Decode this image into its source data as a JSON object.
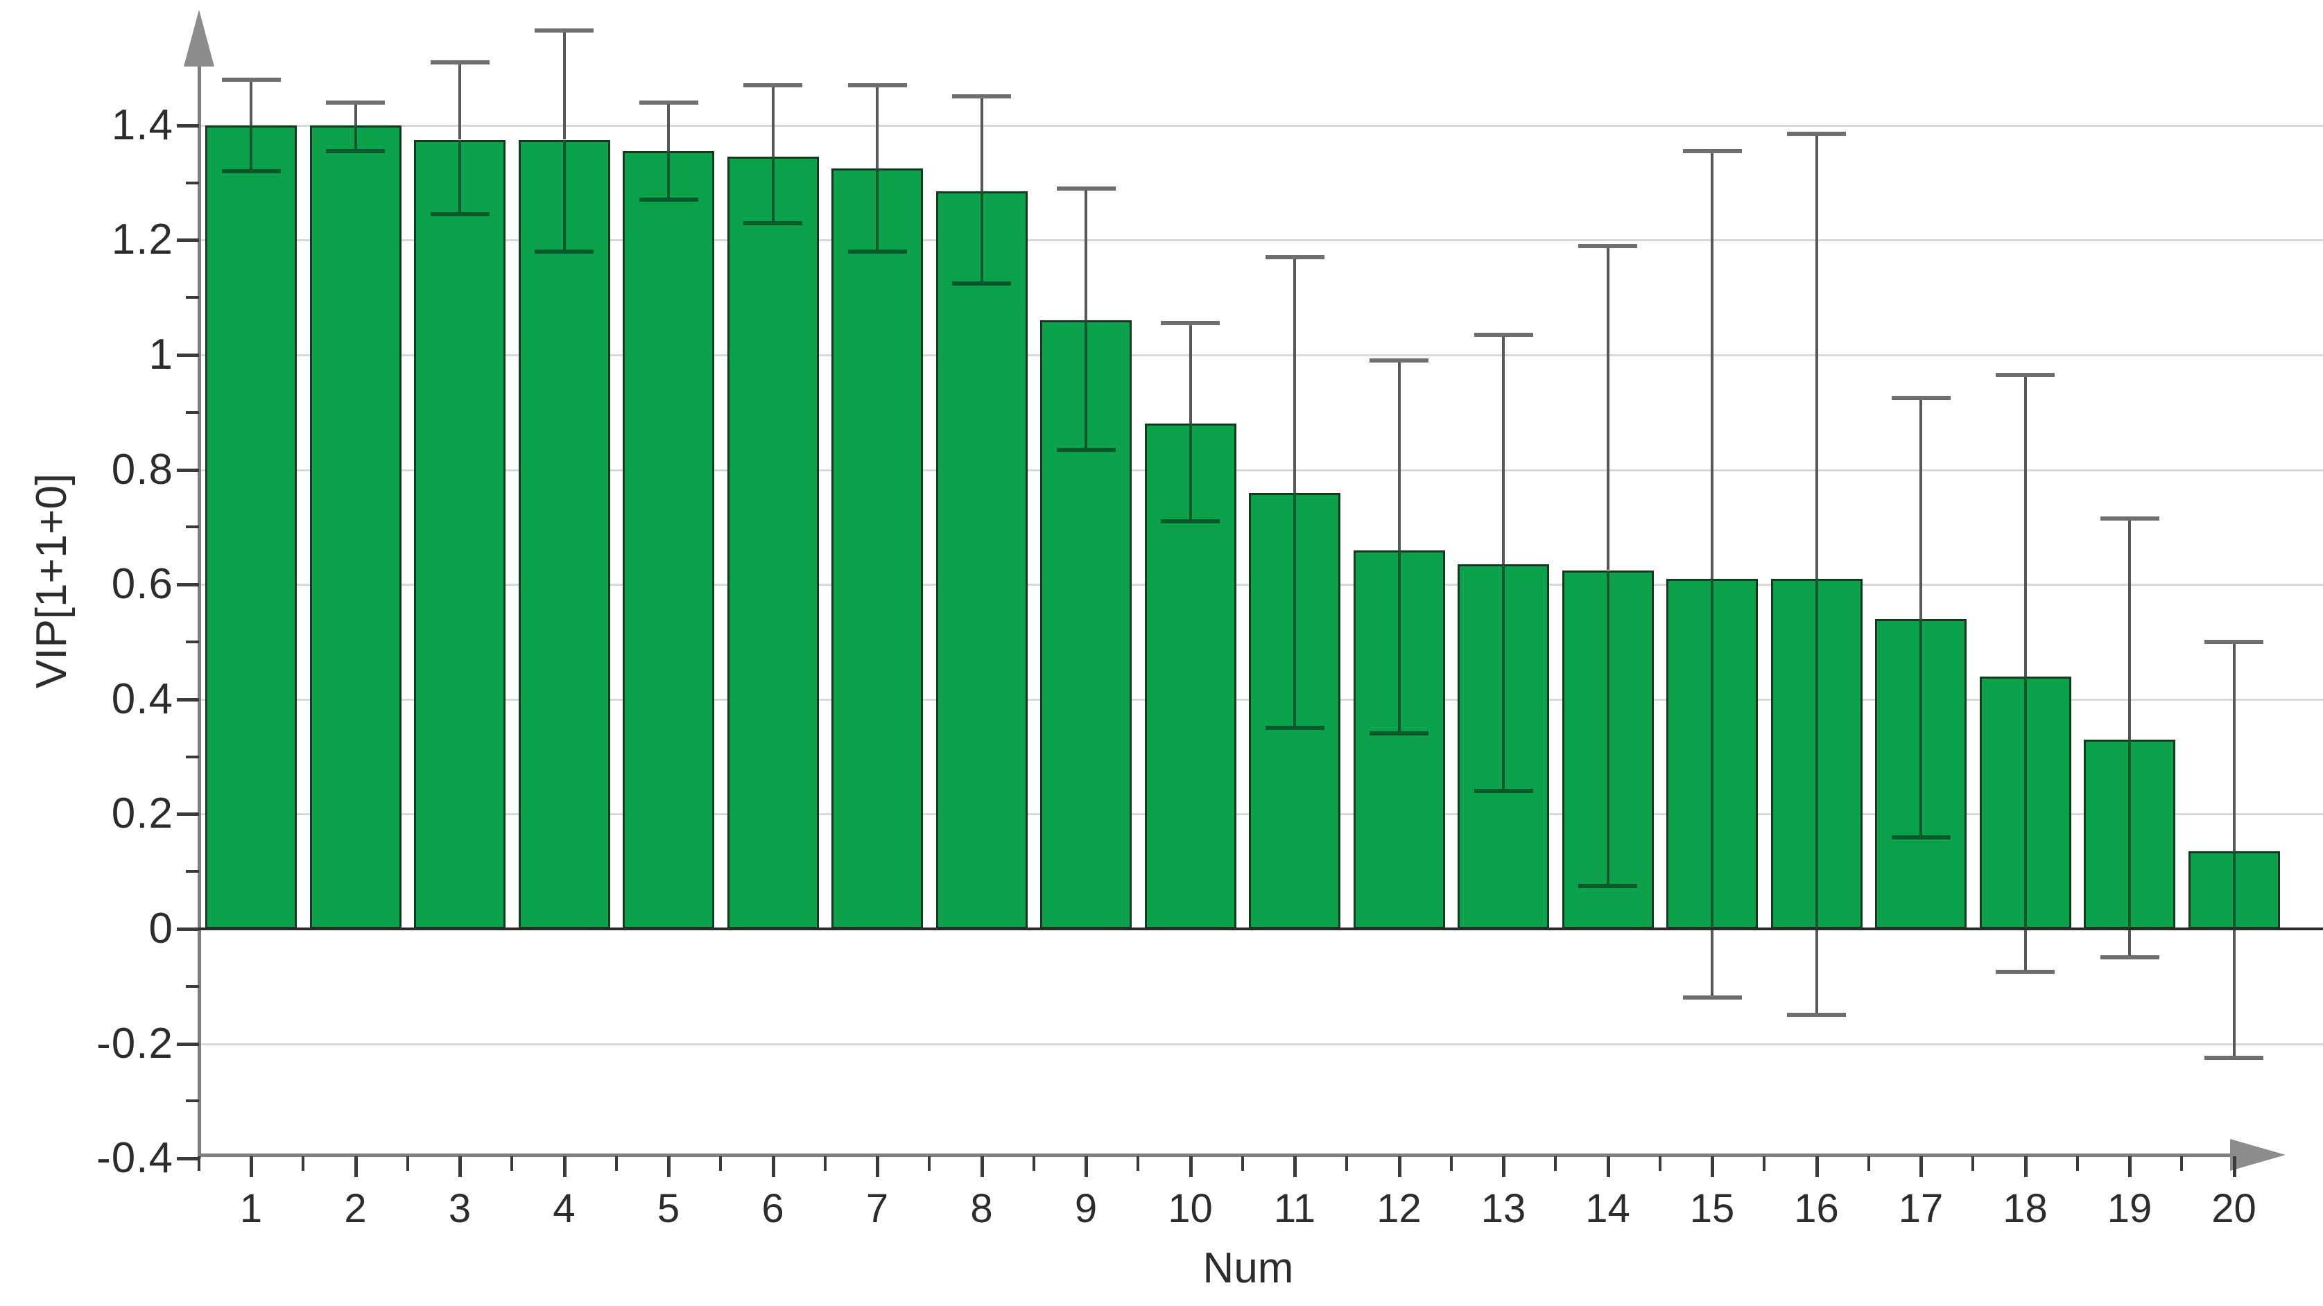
{
  "chart_data": {
    "type": "bar",
    "title": "",
    "xlabel": "Num",
    "ylabel": "VIP[1+1+0]",
    "categories": [
      "1",
      "2",
      "3",
      "4",
      "5",
      "6",
      "7",
      "8",
      "9",
      "10",
      "11",
      "12",
      "13",
      "14",
      "15",
      "16",
      "17",
      "18",
      "19",
      "20"
    ],
    "values": [
      1.4,
      1.4,
      1.375,
      1.375,
      1.355,
      1.345,
      1.325,
      1.285,
      1.06,
      0.88,
      0.76,
      0.66,
      0.635,
      0.625,
      0.61,
      0.61,
      0.54,
      0.44,
      0.33,
      0.135
    ],
    "error_high": [
      1.48,
      1.44,
      1.51,
      1.565,
      1.44,
      1.47,
      1.47,
      1.45,
      1.29,
      1.055,
      1.17,
      0.99,
      1.035,
      1.19,
      1.355,
      1.385,
      0.925,
      0.965,
      0.715,
      0.5
    ],
    "error_low": [
      1.32,
      1.355,
      1.245,
      1.18,
      1.27,
      1.23,
      1.18,
      1.125,
      0.835,
      0.71,
      0.35,
      0.34,
      0.24,
      0.075,
      -0.12,
      -0.15,
      0.16,
      -0.075,
      -0.05,
      -0.225
    ],
    "ylim": [
      -0.4,
      1.55
    ],
    "yticks": [
      {
        "value": 1.4,
        "label": "1.4"
      },
      {
        "value": 1.2,
        "label": "1.2"
      },
      {
        "value": 1.0,
        "label": "1"
      },
      {
        "value": 0.8,
        "label": "0.8"
      },
      {
        "value": 0.6,
        "label": "0.6"
      },
      {
        "value": 0.4,
        "label": "0.4"
      },
      {
        "value": 0.2,
        "label": "0.2"
      },
      {
        "value": 0.0,
        "label": "0"
      },
      {
        "value": -0.2,
        "label": "-0.2"
      },
      {
        "value": -0.4,
        "label": "-0.4"
      }
    ],
    "yticks_minor": [
      1.3,
      1.1,
      0.9,
      0.7,
      0.5,
      0.3,
      0.1,
      -0.1,
      -0.3
    ],
    "gridline_values": [
      1.4,
      1.2,
      1.0,
      0.8,
      0.6,
      0.4,
      0.2,
      -0.2
    ],
    "grid": "horizontal",
    "legend": "none",
    "colors": {
      "bar_fill": "#0ca24b",
      "bar_border": "#123a1f",
      "error_line": "#58585a",
      "error_cap": "#6f6f71",
      "error_inside_bar": "#07582a",
      "axis": "#7f7f7f",
      "arrow": "#8c8c8c",
      "tick": "#3a3a3a",
      "label": "#2c2c2c",
      "gridline": "#d9d9d9",
      "baseline": "#2b2b2b",
      "background": "#ffffff"
    }
  }
}
